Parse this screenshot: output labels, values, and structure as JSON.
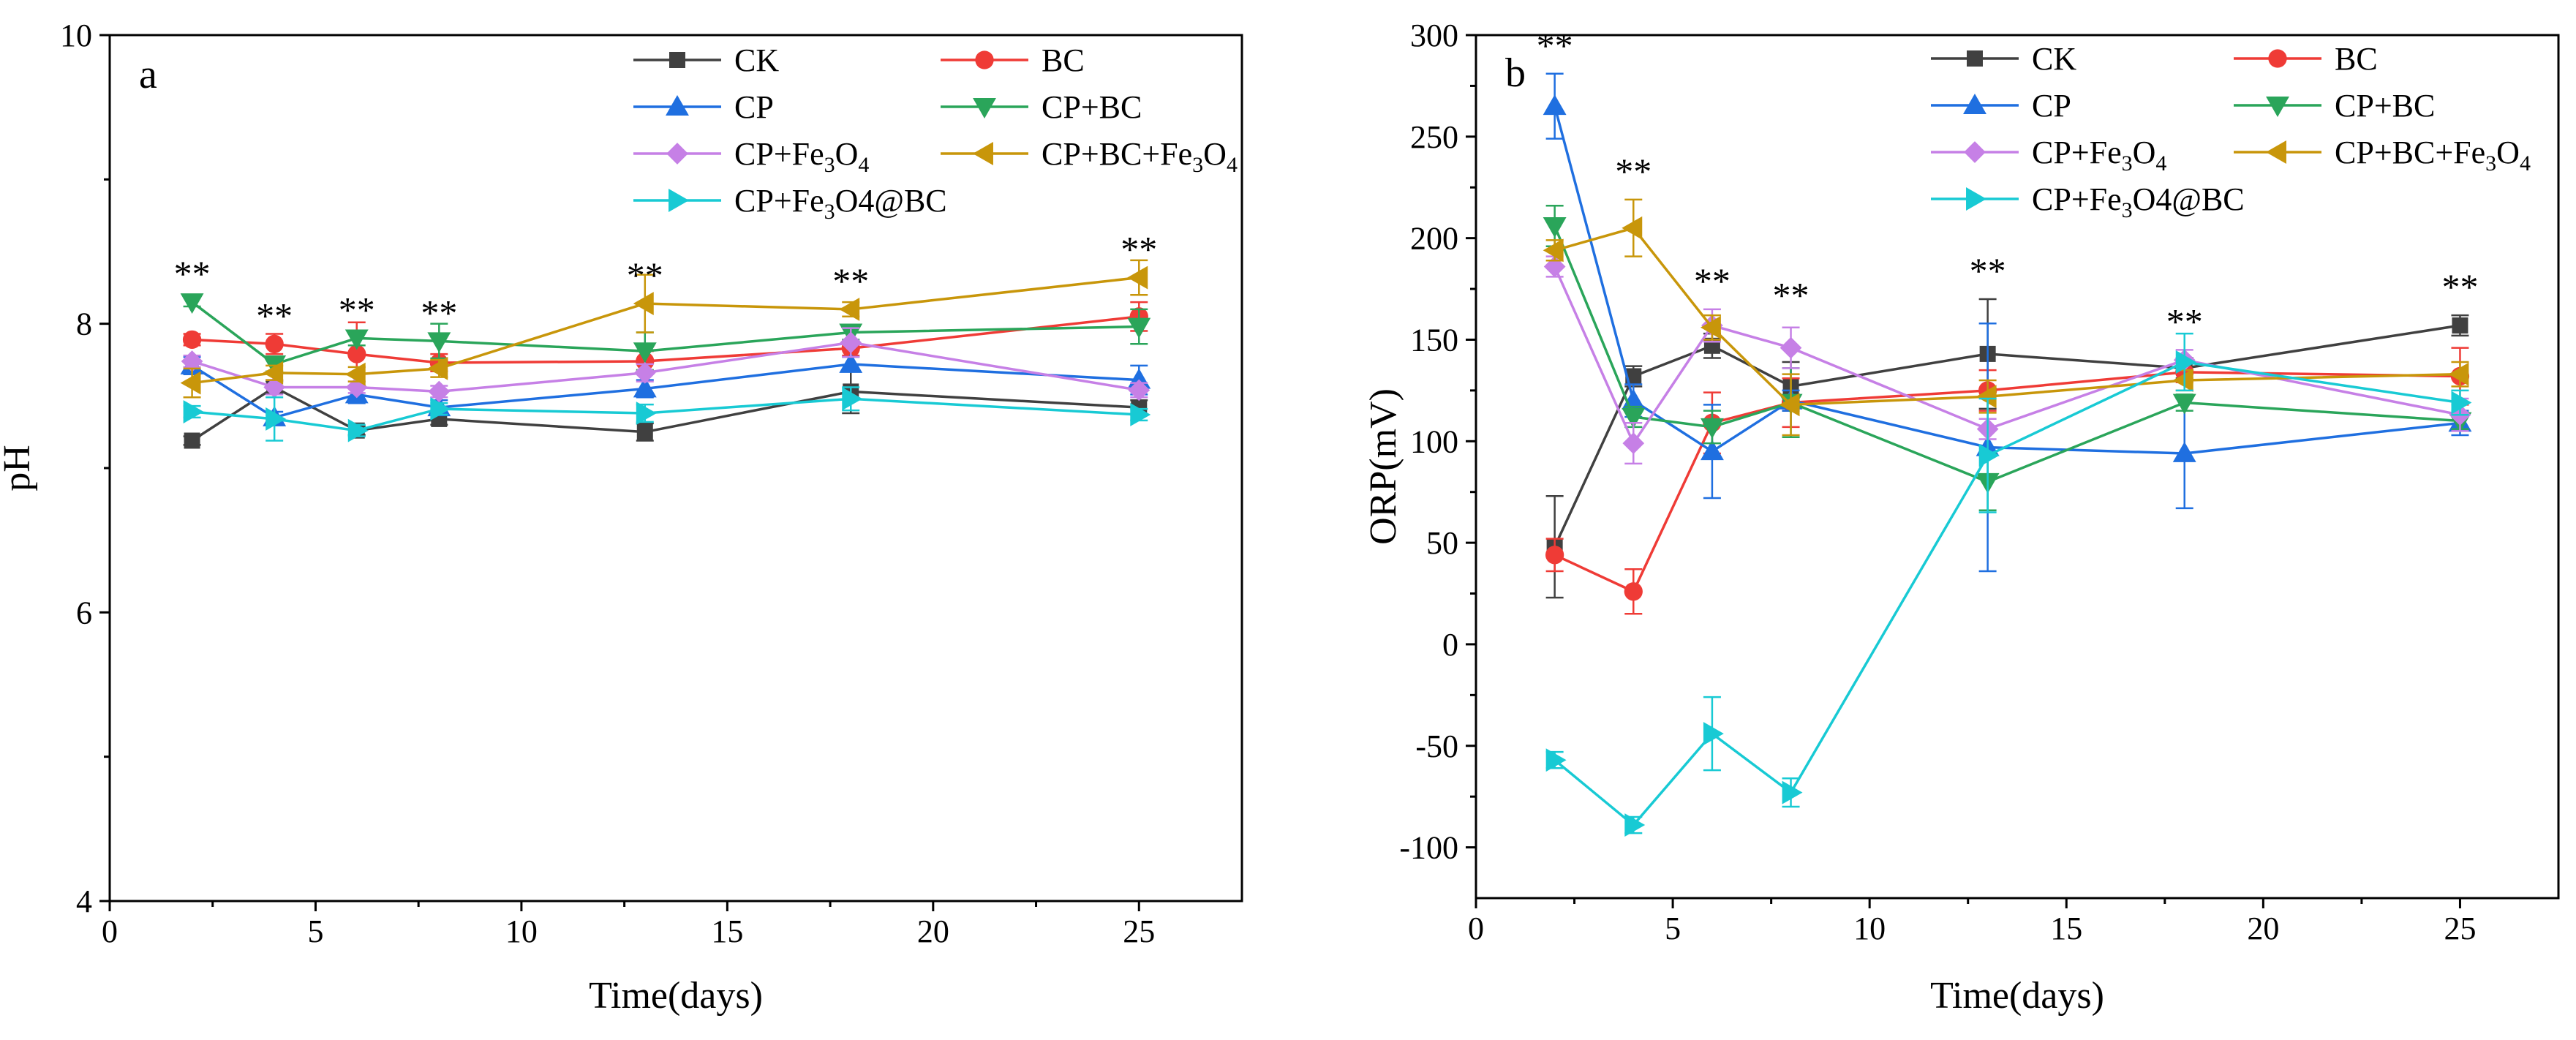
{
  "chart_data": [
    {
      "type": "line",
      "panel_label": "a",
      "xlabel": "Time(days)",
      "ylabel": "pH",
      "xlim": [
        0,
        27.5
      ],
      "ylim": [
        4,
        10
      ],
      "xticks": [
        0,
        5,
        10,
        15,
        20,
        25
      ],
      "yticks": [
        4,
        6,
        8,
        10
      ],
      "x": [
        2,
        4,
        6,
        8,
        13,
        18,
        25
      ],
      "series": [
        {
          "name": "CK",
          "color": "#404040",
          "marker": "square",
          "values": [
            7.19,
            7.56,
            7.26,
            7.34,
            7.25,
            7.53,
            7.42
          ],
          "errors": [
            0.03,
            0.04,
            0.03,
            0.04,
            0.06,
            0.15,
            0.05
          ]
        },
        {
          "name": "BC",
          "color": "#ef3b36",
          "marker": "circle",
          "values": [
            7.89,
            7.86,
            7.79,
            7.73,
            7.74,
            7.83,
            8.05
          ],
          "errors": [
            0.04,
            0.07,
            0.22,
            0.06,
            0.07,
            0.05,
            0.1
          ]
        },
        {
          "name": "CP",
          "color": "#1f6fe0",
          "marker": "triangle-up",
          "values": [
            7.71,
            7.35,
            7.51,
            7.42,
            7.55,
            7.72,
            7.61
          ],
          "errors": [
            0.06,
            0.04,
            0.06,
            0.05,
            0.06,
            0.05,
            0.1
          ]
        },
        {
          "name": "CP+BC",
          "color": "#2aa55a",
          "marker": "triangle-down",
          "values": [
            8.15,
            7.72,
            7.9,
            7.88,
            7.81,
            7.94,
            7.98
          ],
          "errors": [
            0.03,
            0.05,
            0.05,
            0.12,
            0.13,
            0.05,
            0.12
          ]
        },
        {
          "name": "CP+Fe3O4",
          "display_name": [
            "CP+Fe",
            "3",
            "O",
            "4"
          ],
          "color": "#c680e6",
          "marker": "diamond",
          "values": [
            7.74,
            7.56,
            7.56,
            7.53,
            7.66,
            7.87,
            7.54
          ],
          "errors": [
            0.04,
            0.05,
            0.04,
            0.04,
            0.06,
            0.1,
            0.05
          ]
        },
        {
          "name": "CP+BC+Fe3O4",
          "display_name": [
            "CP+BC+Fe",
            "3",
            "O",
            "4"
          ],
          "color": "#c8960a",
          "marker": "triangle-left",
          "values": [
            7.59,
            7.66,
            7.65,
            7.69,
            8.14,
            8.1,
            8.32
          ],
          "errors": [
            0.1,
            0.05,
            0.05,
            0.06,
            0.2,
            0.05,
            0.12
          ]
        },
        {
          "name": "CP+Fe3O4@BC",
          "display_name": [
            "CP+Fe",
            "3",
            "O",
            "4@BC"
          ],
          "color": "#18cad4",
          "marker": "triangle-right",
          "values": [
            7.39,
            7.34,
            7.26,
            7.41,
            7.38,
            7.48,
            7.37
          ],
          "errors": [
            0.04,
            0.15,
            0.04,
            0.04,
            0.06,
            0.08,
            0.04
          ]
        }
      ],
      "annotations": [
        {
          "text": "**",
          "x": 2,
          "y": 8.15
        },
        {
          "text": "**",
          "x": 4,
          "y": 7.86
        },
        {
          "text": "**",
          "x": 6,
          "y": 7.9
        },
        {
          "text": "**",
          "x": 8,
          "y": 7.88
        },
        {
          "text": "**",
          "x": 13,
          "y": 8.14
        },
        {
          "text": "**",
          "x": 18,
          "y": 8.1
        },
        {
          "text": "**",
          "x": 25,
          "y": 8.32
        }
      ],
      "legend": "top-right"
    },
    {
      "type": "line",
      "panel_label": "b",
      "xlabel": "Time(days)",
      "ylabel": "ORP(mV)",
      "xlim": [
        0,
        27.5
      ],
      "ylim": [
        -125,
        300
      ],
      "xticks": [
        0,
        5,
        10,
        15,
        20,
        25
      ],
      "yticks": [
        -100,
        -50,
        0,
        50,
        100,
        150,
        200,
        250,
        300
      ],
      "x": [
        2,
        4,
        6,
        8,
        13,
        18,
        25
      ],
      "series": [
        {
          "name": "CK",
          "color": "#404040",
          "marker": "square",
          "values": [
            48,
            132,
            147,
            127,
            143,
            136,
            157
          ],
          "errors": [
            25,
            5,
            6,
            12,
            27,
            5,
            5
          ]
        },
        {
          "name": "BC",
          "color": "#ef3b36",
          "marker": "circle",
          "values": [
            44,
            26,
            109,
            119,
            125,
            134,
            132
          ],
          "errors": [
            8,
            11,
            15,
            12,
            10,
            5,
            14
          ]
        },
        {
          "name": "CP",
          "color": "#1f6fe0",
          "marker": "triangle-up",
          "values": [
            265,
            120,
            95,
            120,
            97,
            94,
            109
          ],
          "errors": [
            16,
            8,
            23,
            5,
            61,
            27,
            6
          ]
        },
        {
          "name": "CP+BC",
          "color": "#2aa55a",
          "marker": "triangle-down",
          "values": [
            206,
            112,
            107,
            119,
            80,
            119,
            110
          ],
          "errors": [
            10,
            5,
            8,
            17,
            14,
            4,
            4
          ]
        },
        {
          "name": "CP+Fe3O4",
          "display_name": [
            "CP+Fe",
            "3",
            "O",
            "4"
          ],
          "color": "#c680e6",
          "marker": "diamond",
          "values": [
            186,
            99,
            157,
            146,
            106,
            140,
            113
          ],
          "errors": [
            5,
            10,
            8,
            10,
            5,
            5,
            8
          ]
        },
        {
          "name": "CP+BC+Fe3O4",
          "display_name": [
            "CP+BC+Fe",
            "3",
            "O",
            "4"
          ],
          "color": "#c8960a",
          "marker": "triangle-left",
          "values": [
            194,
            205,
            156,
            118,
            122,
            130,
            133
          ],
          "errors": [
            5,
            14,
            6,
            15,
            8,
            5,
            6
          ]
        },
        {
          "name": "CP+Fe3O4@BC",
          "display_name": [
            "CP+Fe",
            "3",
            "O",
            "4@BC"
          ],
          "color": "#18cad4",
          "marker": "triangle-right",
          "values": [
            -57,
            -89,
            -44,
            -73,
            93,
            139,
            119
          ],
          "errors": [
            4,
            4,
            18,
            7,
            28,
            14,
            6
          ]
        }
      ],
      "annotations": [
        {
          "text": "**",
          "x": 2,
          "y": 281
        },
        {
          "text": "**",
          "x": 4,
          "y": 219
        },
        {
          "text": "**",
          "x": 6,
          "y": 165
        },
        {
          "text": "**",
          "x": 8,
          "y": 158
        },
        {
          "text": "**",
          "x": 13,
          "y": 170
        },
        {
          "text": "**",
          "x": 18,
          "y": 145
        },
        {
          "text": "**",
          "x": 25,
          "y": 162
        }
      ],
      "legend": "top-right"
    }
  ]
}
